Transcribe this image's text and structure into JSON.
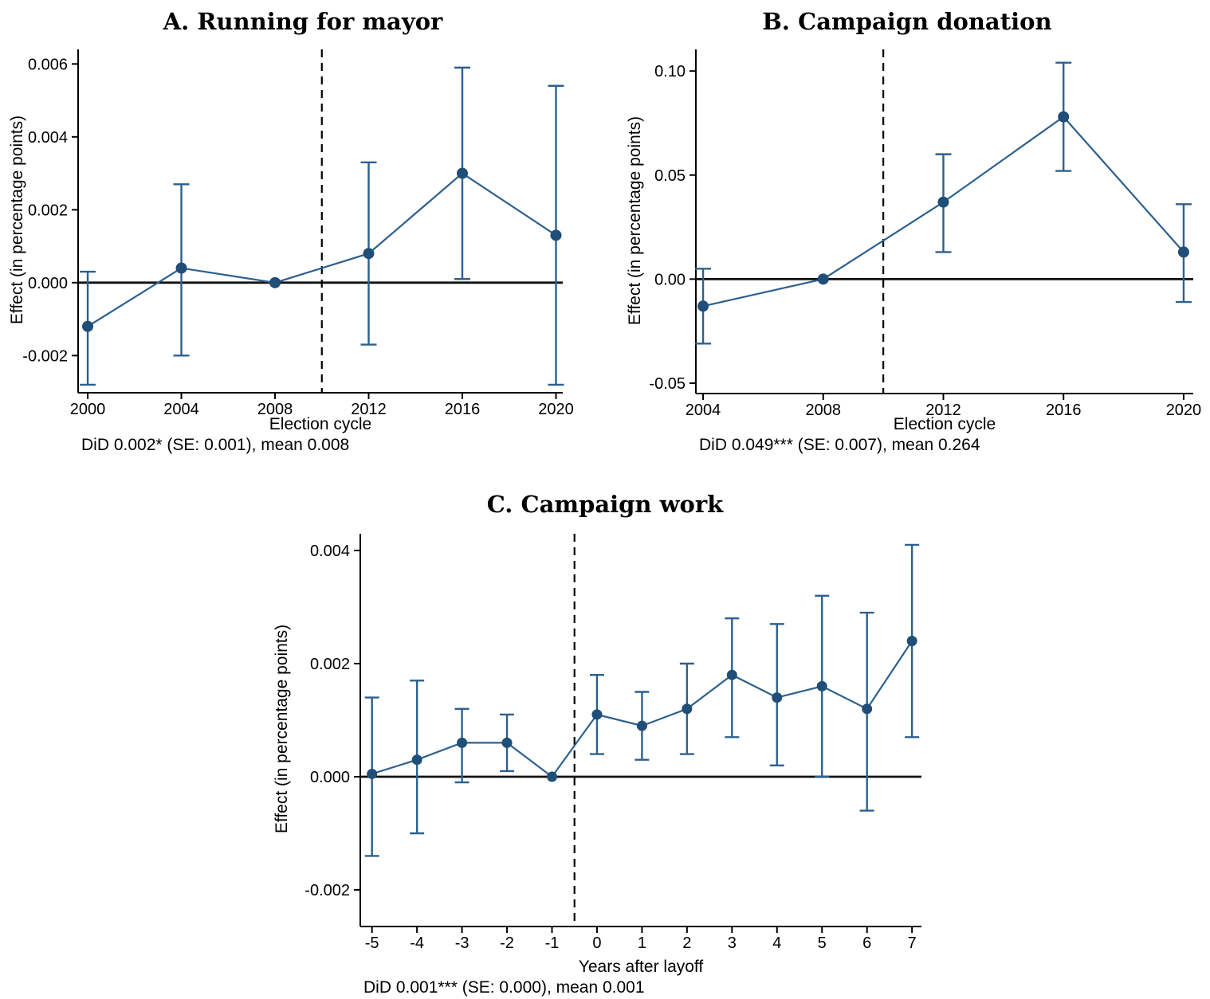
{
  "figure": {
    "background": "#ffffff"
  },
  "colors": {
    "marker": "#1f4e79",
    "line": "#2d608f",
    "whisker": "#2d608f",
    "axis": "#000000",
    "zero_line": "#111111",
    "vline": "#000000",
    "text": "#000000"
  },
  "chart_data": [
    {
      "id": "panel-a",
      "type": "line",
      "title": "A. Running for mayor",
      "xlabel": "Election cycle",
      "ylabel": "Effect (in percentage points)",
      "note": "DiD 0.002* (SE: 0.001), mean 0.008",
      "error_bars": true,
      "grid": false,
      "legend": null,
      "x": [
        2000,
        2004,
        2008,
        2012,
        2016,
        2020
      ],
      "estimates": [
        -0.0012,
        0.0004,
        0,
        0.0008,
        0.003,
        0.0013
      ],
      "ci_low": [
        -0.0028,
        -0.002,
        null,
        -0.0017,
        0.0001,
        -0.0028
      ],
      "ci_high": [
        0.0003,
        0.0027,
        null,
        0.0033,
        0.0059,
        0.0054
      ],
      "reference_x": 2008,
      "treatment_vline_x": 2010,
      "xlim": [
        1999.59,
        2020.29
      ],
      "ylim": [
        -0.00302,
        0.0064
      ],
      "xticks": [
        2000,
        2004,
        2008,
        2012,
        2016,
        2020
      ],
      "xtick_labels": [
        "2000",
        "2004",
        "2008",
        "2012",
        "2016",
        "2020"
      ],
      "yticks": [
        -0.002,
        0,
        0.002,
        0.004,
        0.006
      ],
      "ytick_labels": [
        "-0.002",
        "0.000",
        "0.002",
        "0.004",
        "0.006"
      ]
    },
    {
      "id": "panel-b",
      "type": "line",
      "title": "B. Campaign donation",
      "xlabel": "Election cycle",
      "ylabel": "Effect (in percentage points)",
      "note": "DiD 0.049*** (SE: 0.007), mean 0.264",
      "error_bars": true,
      "grid": false,
      "legend": null,
      "x": [
        2004,
        2008,
        2012,
        2016,
        2020
      ],
      "estimates": [
        -0.013,
        0,
        0.037,
        0.078,
        0.013
      ],
      "ci_low": [
        -0.031,
        null,
        0.013,
        0.052,
        -0.011
      ],
      "ci_high": [
        0.005,
        null,
        0.06,
        0.104,
        0.036
      ],
      "reference_x": 2008,
      "treatment_vline_x": 2010,
      "xlim": [
        2003.76,
        2020.32
      ],
      "ylim": [
        -0.055,
        0.1104
      ],
      "xticks": [
        2004,
        2008,
        2012,
        2016,
        2020
      ],
      "xtick_labels": [
        "2004",
        "2008",
        "2012",
        "2016",
        "2020"
      ],
      "yticks": [
        -0.05,
        0,
        0.05,
        0.1
      ],
      "ytick_labels": [
        "-0.05",
        "0.00",
        "0.05",
        "0.10"
      ]
    },
    {
      "id": "panel-c",
      "type": "line",
      "title": "C. Campaign work",
      "xlabel": "Years after layoff",
      "ylabel": "Effect (in percentage points)",
      "note": "DiD 0.001*** (SE: 0.000), mean 0.001",
      "error_bars": true,
      "grid": false,
      "legend": null,
      "x": [
        -5,
        -4,
        -3,
        -2,
        -1,
        0,
        1,
        2,
        3,
        4,
        5,
        6,
        7
      ],
      "estimates": [
        5e-05,
        0.0003,
        0.0006,
        0.0006,
        0,
        0.0011,
        0.0009,
        0.0012,
        0.0018,
        0.0014,
        0.0016,
        0.0012,
        0.0024
      ],
      "ci_low": [
        -0.0014,
        -0.001,
        -0.0001,
        0.0001,
        null,
        0.0004,
        0.0003,
        0.0004,
        0.0007,
        0.0002,
        0.0,
        -0.0006,
        0.0007
      ],
      "ci_high": [
        0.0014,
        0.0017,
        0.0012,
        0.0011,
        null,
        0.0018,
        0.0015,
        0.002,
        0.0028,
        0.0027,
        0.0032,
        0.0029,
        0.0041
      ],
      "reference_x": -1,
      "treatment_vline_x": -0.5,
      "xlim": [
        -5.26,
        7.21
      ],
      "ylim": [
        -0.002648,
        0.004296
      ],
      "xticks": [
        -5,
        -4,
        -3,
        -2,
        -1,
        0,
        1,
        2,
        3,
        4,
        5,
        6,
        7
      ],
      "xtick_labels": [
        "-5",
        "-4",
        "-3",
        "-2",
        "-1",
        "0",
        "1",
        "2",
        "3",
        "4",
        "5",
        "6",
        "7"
      ],
      "yticks": [
        -0.002,
        0,
        0.002,
        0.004
      ],
      "ytick_labels": [
        "-0.002",
        "0.000",
        "0.002",
        "0.004"
      ]
    }
  ]
}
